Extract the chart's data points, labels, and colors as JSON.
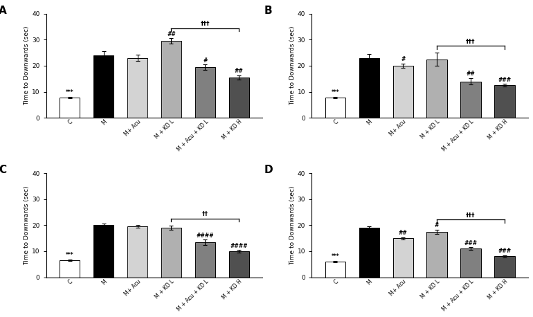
{
  "panels": [
    {
      "label": "A",
      "values": [
        7.8,
        24.0,
        23.0,
        29.5,
        19.5,
        15.5
      ],
      "errors": [
        0.3,
        1.5,
        1.2,
        1.0,
        1.0,
        0.8
      ],
      "sig_vs_C": [
        "***",
        null,
        null,
        null,
        null,
        null
      ],
      "sig_vs_M": [
        null,
        null,
        null,
        "##",
        "#",
        "##"
      ],
      "bracket_cols": [
        3,
        5
      ],
      "bracket_label": "†††",
      "ylim": [
        0,
        40
      ]
    },
    {
      "label": "B",
      "values": [
        7.8,
        23.0,
        20.0,
        22.5,
        14.0,
        12.5
      ],
      "errors": [
        0.3,
        1.5,
        0.8,
        2.5,
        1.2,
        0.5
      ],
      "sig_vs_C": [
        "***",
        null,
        null,
        null,
        null,
        null
      ],
      "sig_vs_M": [
        null,
        null,
        "#",
        null,
        "##",
        "###"
      ],
      "bracket_cols": [
        3,
        5
      ],
      "bracket_label": "†††",
      "ylim": [
        0,
        40
      ]
    },
    {
      "label": "C",
      "values": [
        6.5,
        20.0,
        19.5,
        19.0,
        13.5,
        10.0
      ],
      "errors": [
        0.3,
        0.5,
        0.5,
        0.8,
        1.0,
        0.5
      ],
      "sig_vs_C": [
        "***",
        null,
        null,
        null,
        null,
        null
      ],
      "sig_vs_M": [
        null,
        null,
        null,
        null,
        "####",
        "####"
      ],
      "bracket_cols": [
        3,
        5
      ],
      "bracket_label": "††",
      "ylim": [
        0,
        40
      ]
    },
    {
      "label": "D",
      "values": [
        6.0,
        19.0,
        15.0,
        17.5,
        11.0,
        8.0
      ],
      "errors": [
        0.3,
        0.6,
        0.4,
        0.8,
        0.5,
        0.4
      ],
      "sig_vs_C": [
        "***",
        null,
        null,
        null,
        null,
        null
      ],
      "sig_vs_M": [
        null,
        null,
        "##",
        "#",
        "###",
        "###"
      ],
      "bracket_cols": [
        3,
        5
      ],
      "bracket_label": "†††",
      "ylim": [
        0,
        40
      ]
    }
  ],
  "categories": [
    "C",
    "M",
    "M+ Acu",
    "M + KD L",
    "M + Acu + KD L",
    "M + KD H"
  ],
  "bar_colors": [
    "white",
    "black",
    "#d3d3d3",
    "#b0b0b0",
    "#808080",
    "#505050"
  ],
  "bar_edgecolor": "black",
  "ylabel": "Time to Downwards (sec)",
  "yticks": [
    0,
    10,
    20,
    30,
    40
  ],
  "background_color": "white"
}
